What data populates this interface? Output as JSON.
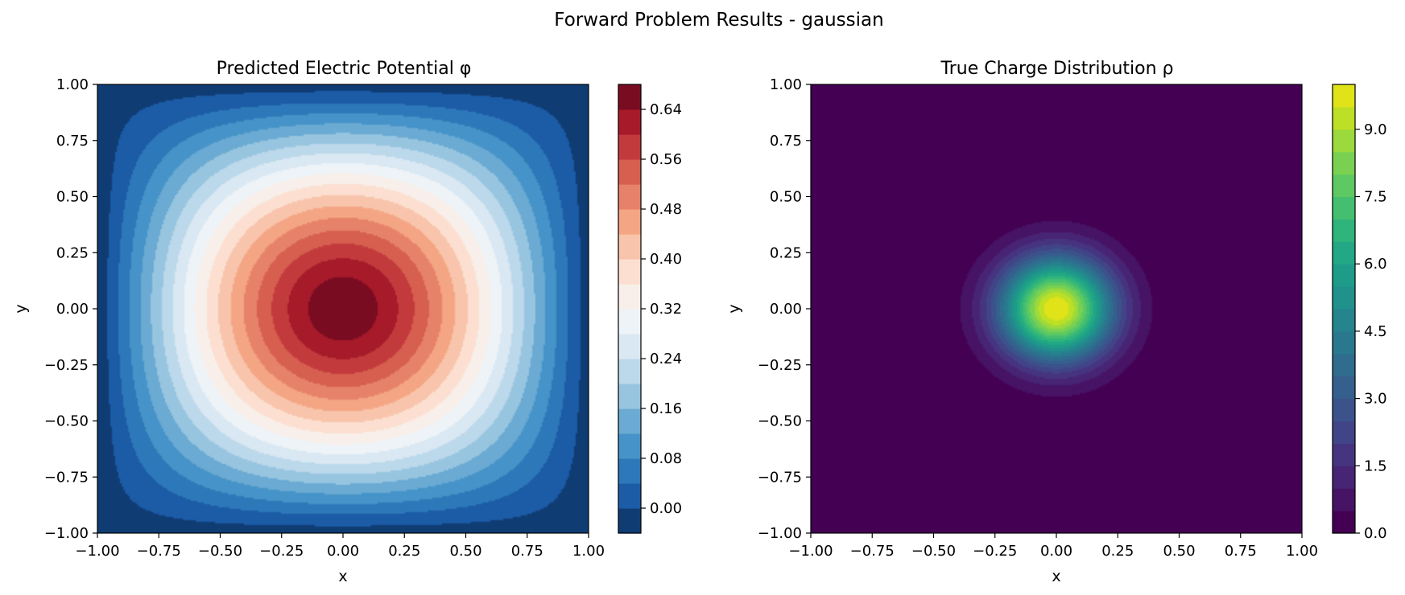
{
  "figure": {
    "suptitle": "Forward Problem Results - gaussian"
  },
  "chart_data": [
    {
      "type": "heatmap",
      "subtype": "filled-contour",
      "title": "Predicted Electric Potential φ",
      "xlabel": "x",
      "ylabel": "y",
      "xlim": [
        -1.0,
        1.0
      ],
      "ylim": [
        -1.0,
        1.0
      ],
      "xticks": [
        "−1.00",
        "−0.75",
        "−0.50",
        "−0.25",
        "0.00",
        "0.25",
        "0.50",
        "0.75",
        "1.00"
      ],
      "yticks": [
        "−1.00",
        "−0.75",
        "−0.50",
        "−0.25",
        "0.00",
        "0.25",
        "0.50",
        "0.75",
        "1.00"
      ],
      "colormap": "RdBu_r",
      "colorbar": {
        "min": -0.04,
        "max": 0.68,
        "levels": 18,
        "ticks": [
          0.0,
          0.08,
          0.16,
          0.24,
          0.32,
          0.4,
          0.48,
          0.56,
          0.64
        ],
        "tick_labels": [
          "0.00",
          "0.08",
          "0.16",
          "0.24",
          "0.32",
          "0.40",
          "0.48",
          "0.56",
          "0.64"
        ],
        "colors": [
          "#0f3c73",
          "#1c5ba6",
          "#2d78b8",
          "#4593c8",
          "#6aaad3",
          "#97c5df",
          "#bcd8eb",
          "#d9e8f2",
          "#eef3f7",
          "#f8efea",
          "#fcdfd0",
          "#f8c4ab",
          "#f4a583",
          "#e7826a",
          "#d65f50",
          "#c33a3d",
          "#a71a2a",
          "#7a0c22"
        ]
      },
      "field": {
        "description_free": true,
        "peak_value": 0.67,
        "peak_at": [
          0.0,
          0.0
        ],
        "boundary_value": -0.02
      }
    },
    {
      "type": "heatmap",
      "subtype": "filled-contour",
      "title": "True Charge Distribution ρ",
      "xlabel": "x",
      "ylabel": "y",
      "xlim": [
        -1.0,
        1.0
      ],
      "ylim": [
        -1.0,
        1.0
      ],
      "xticks": [
        "−1.00",
        "−0.75",
        "−0.50",
        "−0.25",
        "0.00",
        "0.25",
        "0.50",
        "0.75",
        "1.00"
      ],
      "yticks": [
        "−1.00",
        "−0.75",
        "−0.50",
        "−0.25",
        "0.00",
        "0.25",
        "0.50",
        "0.75",
        "1.00"
      ],
      "colormap": "viridis",
      "colorbar": {
        "min": 0.0,
        "max": 10.0,
        "levels": 20,
        "ticks": [
          0.0,
          1.5,
          3.0,
          4.5,
          6.0,
          7.5,
          9.0
        ],
        "tick_labels": [
          "0.0",
          "1.5",
          "3.0",
          "4.5",
          "6.0",
          "7.5",
          "9.0"
        ],
        "colors": [
          "#440154",
          "#471365",
          "#482475",
          "#463480",
          "#414487",
          "#3b528b",
          "#355f8d",
          "#2f6c8e",
          "#2a788e",
          "#25848e",
          "#21918c",
          "#1e9c89",
          "#22a884",
          "#2fb47c",
          "#44bf70",
          "#5ec962",
          "#7ad151",
          "#9bd93c",
          "#bddf26",
          "#dfe318"
        ]
      },
      "field": {
        "amplitude": 10.0,
        "center": [
          0.0,
          0.0
        ],
        "sigma": 0.16
      }
    }
  ]
}
